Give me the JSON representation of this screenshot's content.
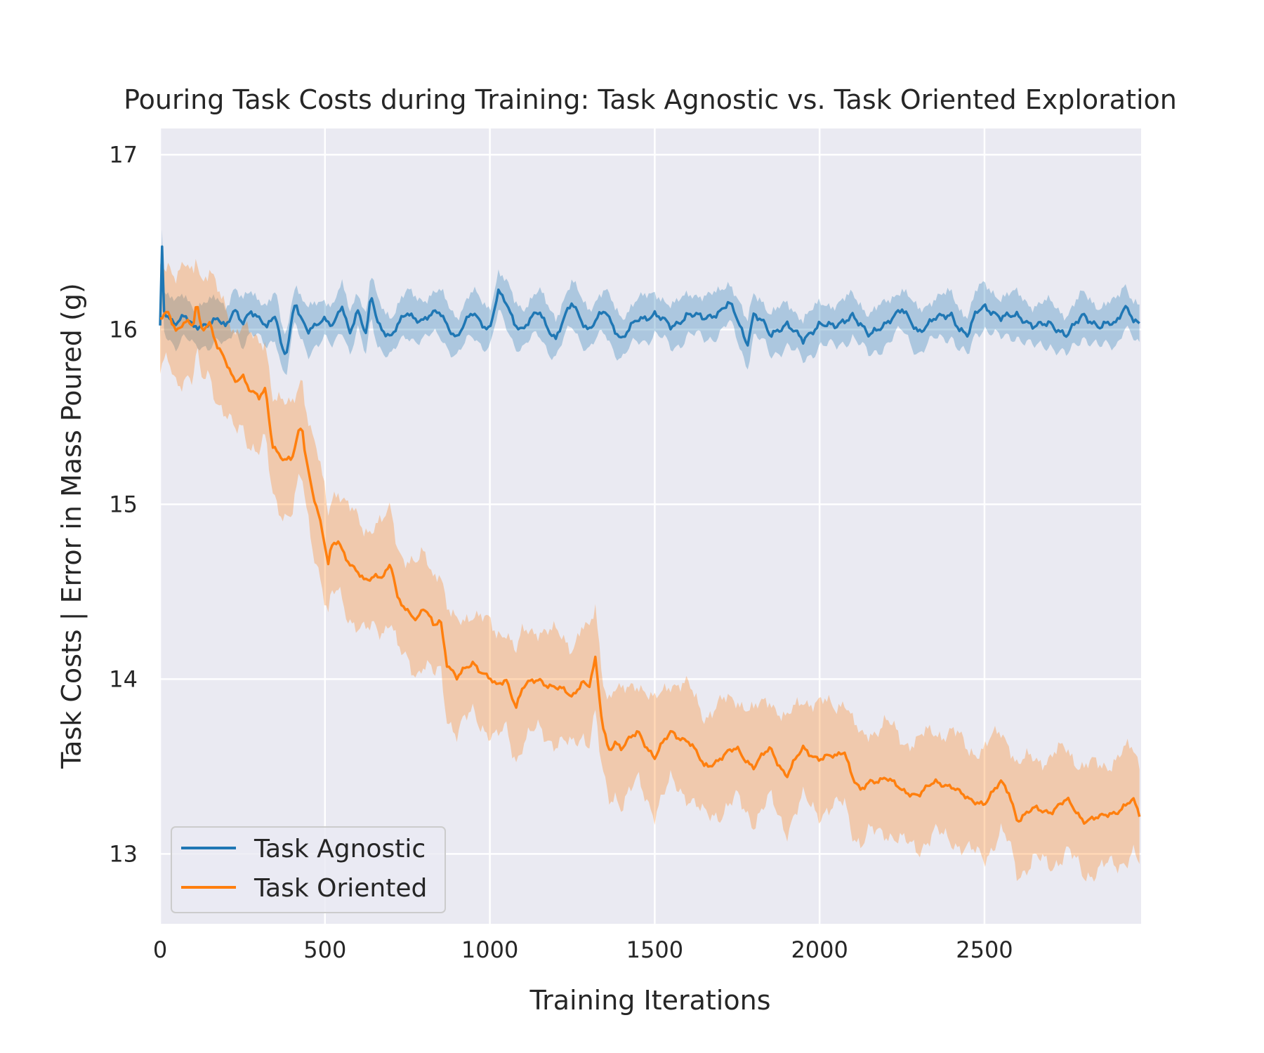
{
  "chart_data": {
    "type": "line",
    "title": "Pouring Task Costs during Training: Task Agnostic vs. Task Oriented Exploration",
    "xlabel": "Training Iterations",
    "ylabel": "Task Costs | Error in Mass Poured (g)",
    "xlim": [
      0,
      2975
    ],
    "ylim": [
      12.6,
      17.15
    ],
    "xticks": [
      0,
      500,
      1000,
      1500,
      2000,
      2500
    ],
    "yticks": [
      13,
      14,
      15,
      16,
      17
    ],
    "grid": true,
    "legend_position": "lower-left",
    "series": [
      {
        "name": "Task Agnostic",
        "color": "#1f77b4",
        "x": [
          0,
          5,
          10,
          25,
          50,
          75,
          100,
          125,
          150,
          175,
          200,
          225,
          250,
          275,
          300,
          325,
          350,
          370,
          385,
          400,
          410,
          425,
          450,
          475,
          500,
          525,
          550,
          575,
          600,
          625,
          640,
          660,
          700,
          750,
          800,
          850,
          900,
          950,
          1000,
          1025,
          1050,
          1075,
          1100,
          1150,
          1200,
          1250,
          1300,
          1350,
          1400,
          1450,
          1500,
          1550,
          1600,
          1650,
          1700,
          1725,
          1750,
          1780,
          1800,
          1825,
          1850,
          1900,
          1950,
          2000,
          2050,
          2100,
          2150,
          2200,
          2250,
          2300,
          2350,
          2400,
          2425,
          2450,
          2475,
          2500,
          2550,
          2600,
          2650,
          2700,
          2750,
          2800,
          2850,
          2900,
          2925,
          2950,
          2975
        ],
        "mean": [
          16.0,
          16.55,
          16.1,
          16.05,
          16.05,
          16.1,
          16.0,
          16.0,
          16.05,
          16.08,
          16.0,
          16.1,
          16.05,
          16.12,
          16.05,
          16.0,
          16.1,
          15.9,
          15.88,
          16.05,
          16.15,
          16.05,
          16.0,
          16.05,
          16.05,
          16.0,
          16.15,
          16.0,
          16.1,
          15.95,
          16.2,
          16.05,
          15.95,
          16.1,
          16.05,
          16.1,
          15.95,
          16.1,
          16.0,
          16.2,
          16.15,
          16.05,
          16.0,
          16.1,
          15.95,
          16.15,
          16.0,
          16.1,
          15.95,
          16.05,
          16.1,
          16.0,
          16.1,
          16.05,
          16.12,
          16.15,
          16.05,
          15.92,
          16.1,
          16.05,
          15.95,
          16.05,
          15.92,
          16.05,
          16.0,
          16.1,
          15.95,
          16.05,
          16.1,
          16.0,
          16.05,
          16.1,
          16.0,
          15.95,
          16.1,
          16.15,
          16.05,
          16.1,
          16.0,
          16.05,
          15.95,
          16.1,
          16.0,
          16.05,
          16.15,
          16.05,
          16.0
        ],
        "band": 0.12
      },
      {
        "name": "Task Oriented",
        "color": "#ff7f0e",
        "x": [
          0,
          25,
          50,
          75,
          100,
          110,
          125,
          150,
          175,
          200,
          225,
          250,
          275,
          300,
          320,
          340,
          360,
          380,
          400,
          420,
          430,
          440,
          450,
          460,
          480,
          500,
          510,
          520,
          540,
          560,
          580,
          600,
          620,
          650,
          680,
          700,
          720,
          750,
          780,
          800,
          830,
          850,
          870,
          900,
          950,
          1000,
          1020,
          1050,
          1080,
          1100,
          1150,
          1200,
          1250,
          1280,
          1300,
          1320,
          1340,
          1360,
          1380,
          1400,
          1450,
          1500,
          1550,
          1600,
          1650,
          1700,
          1750,
          1800,
          1850,
          1900,
          1950,
          2000,
          2050,
          2075,
          2100,
          2125,
          2150,
          2200,
          2250,
          2300,
          2350,
          2400,
          2450,
          2500,
          2550,
          2575,
          2600,
          2650,
          2700,
          2750,
          2800,
          2850,
          2900,
          2950,
          2975
        ],
        "mean": [
          16.05,
          16.1,
          16.0,
          16.05,
          16.0,
          16.15,
          16.0,
          16.05,
          15.9,
          15.8,
          15.7,
          15.75,
          15.65,
          15.6,
          15.65,
          15.35,
          15.3,
          15.25,
          15.25,
          15.4,
          15.45,
          15.3,
          15.2,
          15.1,
          14.95,
          14.75,
          14.65,
          14.75,
          14.8,
          14.72,
          14.65,
          14.6,
          14.55,
          14.6,
          14.6,
          14.65,
          14.45,
          14.4,
          14.35,
          14.4,
          14.3,
          14.35,
          14.1,
          14.0,
          14.1,
          14.0,
          13.95,
          14.0,
          13.85,
          13.95,
          14.0,
          13.95,
          13.9,
          14.0,
          13.95,
          14.1,
          13.75,
          13.6,
          13.65,
          13.6,
          13.7,
          13.55,
          13.7,
          13.65,
          13.5,
          13.55,
          13.6,
          13.5,
          13.6,
          13.45,
          13.6,
          13.55,
          13.55,
          13.6,
          13.45,
          13.35,
          13.4,
          13.45,
          13.35,
          13.35,
          13.4,
          13.4,
          13.3,
          13.3,
          13.4,
          13.35,
          13.2,
          13.25,
          13.25,
          13.3,
          13.2,
          13.2,
          13.25,
          13.3,
          13.2
        ],
        "band": 0.3
      }
    ]
  }
}
